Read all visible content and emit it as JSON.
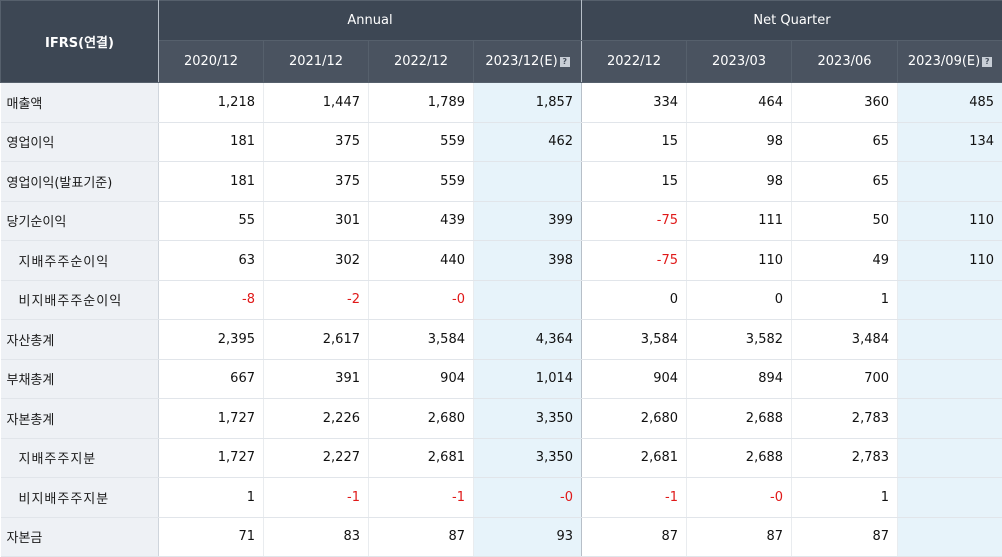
{
  "header": {
    "corner": "IFRS(연결)",
    "groups": [
      "Annual",
      "Net Quarter"
    ],
    "periods": [
      {
        "label": "2020/12",
        "est": false
      },
      {
        "label": "2021/12",
        "est": false
      },
      {
        "label": "2022/12",
        "est": false
      },
      {
        "label": "2023/12(E)",
        "est": true
      },
      {
        "label": "2022/12",
        "est": false
      },
      {
        "label": "2023/03",
        "est": false
      },
      {
        "label": "2023/06",
        "est": false
      },
      {
        "label": "2023/09(E)",
        "est": true
      }
    ],
    "help_icon": "?"
  },
  "rows": [
    {
      "label": "매출액",
      "sub": false,
      "values": [
        "1,218",
        "1,447",
        "1,789",
        "1,857",
        "334",
        "464",
        "360",
        "485"
      ]
    },
    {
      "label": "영업이익",
      "sub": false,
      "values": [
        "181",
        "375",
        "559",
        "462",
        "15",
        "98",
        "65",
        "134"
      ]
    },
    {
      "label": "영업이익(발표기준)",
      "sub": false,
      "values": [
        "181",
        "375",
        "559",
        "",
        "15",
        "98",
        "65",
        ""
      ]
    },
    {
      "label": "당기순이익",
      "sub": false,
      "values": [
        "55",
        "301",
        "439",
        "399",
        "-75",
        "111",
        "50",
        "110"
      ]
    },
    {
      "label": "지배주주순이익",
      "sub": true,
      "values": [
        "63",
        "302",
        "440",
        "398",
        "-75",
        "110",
        "49",
        "110"
      ]
    },
    {
      "label": "비지배주주순이익",
      "sub": true,
      "values": [
        "-8",
        "-2",
        "-0",
        "",
        "0",
        "0",
        "1",
        ""
      ]
    },
    {
      "label": "자산총계",
      "sub": false,
      "values": [
        "2,395",
        "2,617",
        "3,584",
        "4,364",
        "3,584",
        "3,582",
        "3,484",
        ""
      ]
    },
    {
      "label": "부채총계",
      "sub": false,
      "values": [
        "667",
        "391",
        "904",
        "1,014",
        "904",
        "894",
        "700",
        ""
      ]
    },
    {
      "label": "자본총계",
      "sub": false,
      "values": [
        "1,727",
        "2,226",
        "2,680",
        "3,350",
        "2,680",
        "2,688",
        "2,783",
        ""
      ]
    },
    {
      "label": "지배주주지분",
      "sub": true,
      "values": [
        "1,727",
        "2,227",
        "2,681",
        "3,350",
        "2,681",
        "2,688",
        "2,783",
        ""
      ]
    },
    {
      "label": "비지배주주지분",
      "sub": true,
      "values": [
        "1",
        "-1",
        "-1",
        "-0",
        "-1",
        "-0",
        "1",
        ""
      ]
    },
    {
      "label": "자본금",
      "sub": false,
      "values": [
        "71",
        "83",
        "87",
        "93",
        "87",
        "87",
        "87",
        ""
      ]
    }
  ],
  "colors": {
    "header_bg": "#3d4754",
    "label_bg": "#eef1f5",
    "estimate_bg": "#e7f3fa",
    "negative": "#e01919"
  }
}
